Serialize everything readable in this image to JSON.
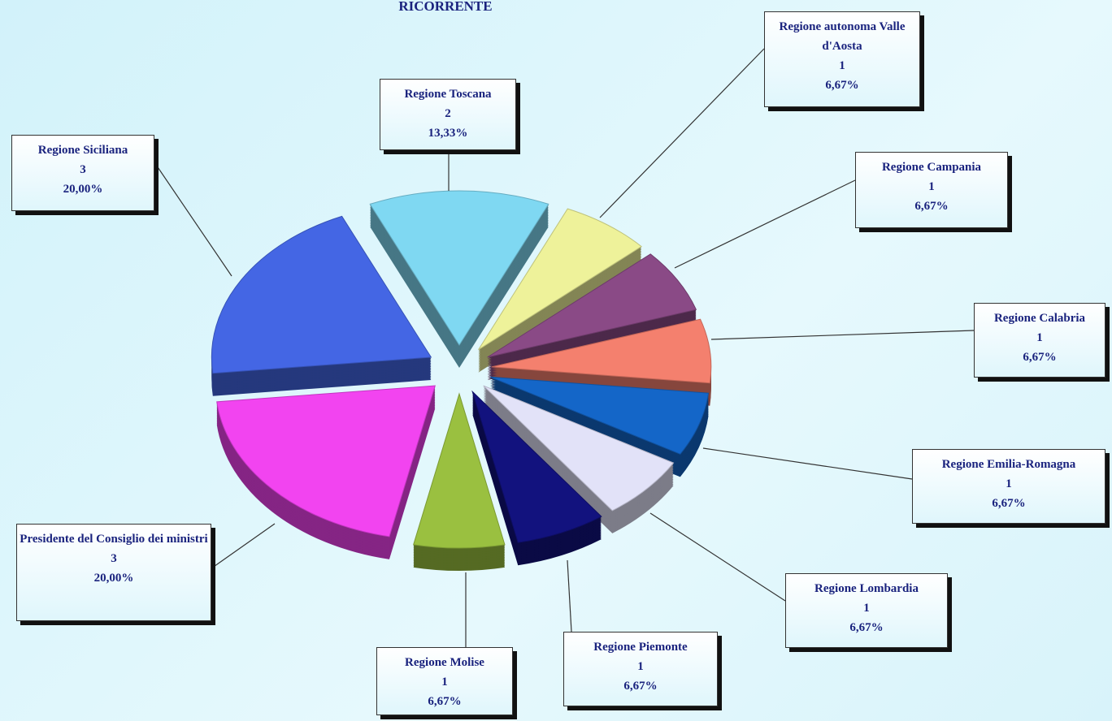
{
  "chart_data": {
    "type": "pie",
    "title": "RICORRENTE",
    "categories": [
      "Regione Toscana",
      "Regione autonoma Valle d'Aosta",
      "Regione Campania",
      "Regione Calabria",
      "Regione Emilia-Romagna",
      "Regione Lombardia",
      "Regione Piemonte",
      "Regione Molise",
      "Presidente del Consiglio dei ministri",
      "Regione Siciliana"
    ],
    "counts": [
      2,
      1,
      1,
      1,
      1,
      1,
      1,
      1,
      3,
      3
    ],
    "values": [
      13.33,
      6.67,
      6.67,
      6.67,
      6.67,
      6.67,
      6.67,
      6.67,
      20.0,
      20.0
    ],
    "value_labels": [
      "13,33%",
      "6,67%",
      "6,67%",
      "6,67%",
      "6,67%",
      "6,67%",
      "6,67%",
      "6,67%",
      "20,00%",
      "20,00%"
    ],
    "colors": [
      "#7fd8f2",
      "#eef29a",
      "#8a4a86",
      "#f4806e",
      "#1466c8",
      "#e2e2f8",
      "#12127e",
      "#9ac040",
      "#f244f0",
      "#4466e4"
    ]
  }
}
